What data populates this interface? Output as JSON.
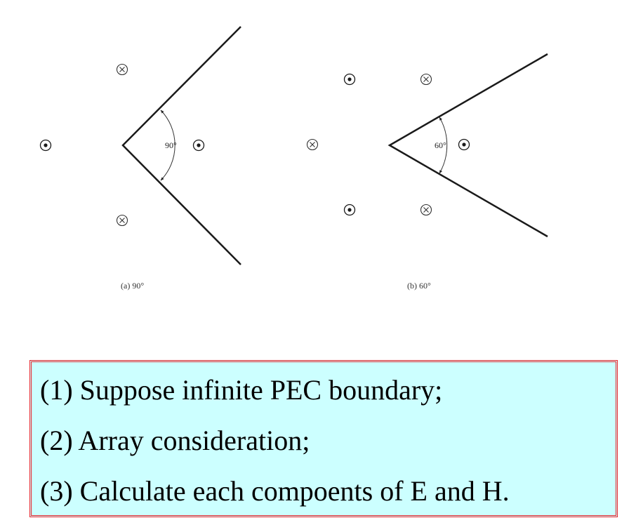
{
  "figure": {
    "panels": [
      {
        "id": "a",
        "caption": "(a) 90°",
        "angle_label": "90°",
        "wedge_angle_deg": 90,
        "sources": [
          {
            "kind": "dot"
          },
          {
            "kind": "cross"
          },
          {
            "kind": "dot"
          },
          {
            "kind": "cross"
          }
        ]
      },
      {
        "id": "b",
        "caption": "(b) 60°",
        "angle_label": "60°",
        "wedge_angle_deg": 60,
        "sources": [
          {
            "kind": "dot"
          },
          {
            "kind": "cross"
          },
          {
            "kind": "cross"
          },
          {
            "kind": "dot"
          },
          {
            "kind": "dot"
          },
          {
            "kind": "cross"
          }
        ]
      }
    ],
    "symbols": {
      "dot": "current out of page (dot-in-circle)",
      "cross": "current into page (cross-in-circle)"
    }
  },
  "steps": [
    "(1) Suppose infinite PEC boundary;",
    "(2) Array consideration;",
    "(3) Calculate each compoents of E and H."
  ],
  "colors": {
    "box_border": "#e8242b",
    "box_fill": "#ccffff",
    "line": "#1a1a1a"
  }
}
